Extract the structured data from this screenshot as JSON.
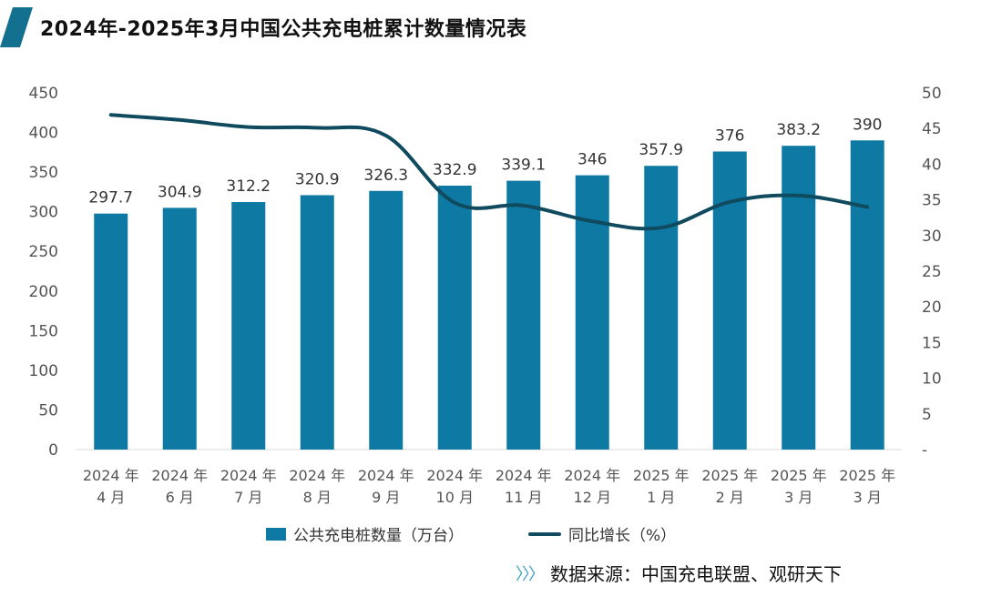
{
  "title": "2024年-2025年3月中国公共充电桩累计数量情况表",
  "colors": {
    "bar": "#0e7aa3",
    "line": "#0f4a5e",
    "accent": "#13708f",
    "axis_text": "#555555",
    "gridline": "#d9d9d9"
  },
  "legend": {
    "bar_label": "公共充电桩数量（万台）",
    "line_label": "同比增长（%）"
  },
  "source": {
    "arrows": "〉〉〉",
    "text": "数据来源：中国充电联盟、观研天下"
  },
  "chart_data": {
    "type": "bar",
    "categories": [
      [
        "2024 年",
        "4 月"
      ],
      [
        "2024 年",
        "6 月"
      ],
      [
        "2024 年",
        "7 月"
      ],
      [
        "2024 年",
        "8 月"
      ],
      [
        "2024 年",
        "9 月"
      ],
      [
        "2024 年",
        "10 月"
      ],
      [
        "2024 年",
        "11 月"
      ],
      [
        "2024 年",
        "12 月"
      ],
      [
        "2025 年",
        "1 月"
      ],
      [
        "2025 年",
        "2 月"
      ],
      [
        "2025 年",
        "3 月"
      ],
      [
        "2025 年",
        "3 月"
      ]
    ],
    "series": [
      {
        "name": "公共充电桩数量（万台）",
        "type": "bar",
        "axis": "left",
        "values": [
          297.7,
          304.9,
          312.2,
          320.9,
          326.3,
          332.9,
          339.1,
          346,
          357.9,
          376,
          383.2,
          390
        ],
        "data_labels": [
          "297.7",
          "304.9",
          "312.2",
          "320.9",
          "326.3",
          "332.9",
          "339.1",
          "346",
          "357.9",
          "376",
          "383.2",
          "390"
        ]
      },
      {
        "name": "同比增长（%）",
        "type": "line",
        "axis": "right",
        "smooth": true,
        "values": [
          46.9,
          46.2,
          45.2,
          45.1,
          44,
          34.6,
          34.2,
          32,
          31.1,
          34.7,
          35.6,
          34
        ]
      }
    ],
    "y_left": {
      "min": 0,
      "max": 450,
      "ticks": [
        "0",
        "50",
        "100",
        "150",
        "200",
        "250",
        "300",
        "350",
        "400",
        "450"
      ]
    },
    "y_right": {
      "min": 0,
      "max": 50,
      "ticks": [
        "-",
        "5",
        "10",
        "15",
        "20",
        "25",
        "30",
        "35",
        "40",
        "45",
        "50"
      ]
    },
    "grid": false,
    "legend_position": "bottom"
  }
}
